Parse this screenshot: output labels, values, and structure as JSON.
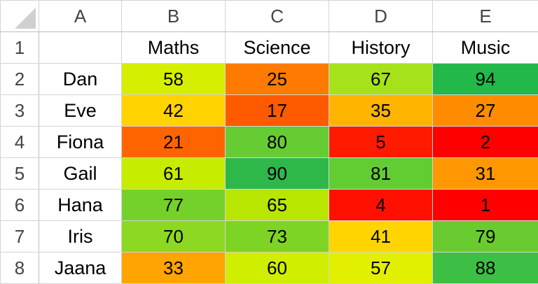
{
  "columns": [
    "A",
    "B",
    "C",
    "D",
    "E"
  ],
  "header_row": {
    "number": "1",
    "name": "",
    "subjects": [
      "Maths",
      "Science",
      "History",
      "Music"
    ]
  },
  "rows": [
    {
      "number": "2",
      "name": "Dan",
      "scores": [
        58,
        25,
        67,
        94
      ]
    },
    {
      "number": "3",
      "name": "Eve",
      "scores": [
        42,
        17,
        35,
        27
      ]
    },
    {
      "number": "4",
      "name": "Fiona",
      "scores": [
        21,
        80,
        5,
        2
      ]
    },
    {
      "number": "5",
      "name": "Gail",
      "scores": [
        61,
        90,
        81,
        31
      ]
    },
    {
      "number": "6",
      "name": "Hana",
      "scores": [
        77,
        65,
        4,
        1
      ]
    },
    {
      "number": "7",
      "name": "Iris",
      "scores": [
        70,
        73,
        41,
        79
      ]
    },
    {
      "number": "8",
      "name": "Jaana",
      "scores": [
        33,
        60,
        57,
        88
      ]
    }
  ],
  "cell_colors": [
    [
      "#d4f000",
      "#ff7a00",
      "#a6e21a",
      "#22b84a"
    ],
    [
      "#ffd200",
      "#ff5a00",
      "#ffb400",
      "#ff8c00"
    ],
    [
      "#ff6400",
      "#66cc33",
      "#ff1a00",
      "#ff0000"
    ],
    [
      "#c6ec00",
      "#2eb84a",
      "#62cc33",
      "#ff9800"
    ],
    [
      "#74d12a",
      "#b8e600",
      "#ff1000",
      "#ff0000"
    ],
    [
      "#8cd822",
      "#7ed425",
      "#ffd400",
      "#6acb30"
    ],
    [
      "#ffa400",
      "#d0ee00",
      "#e2f000",
      "#3cbf44"
    ]
  ]
}
